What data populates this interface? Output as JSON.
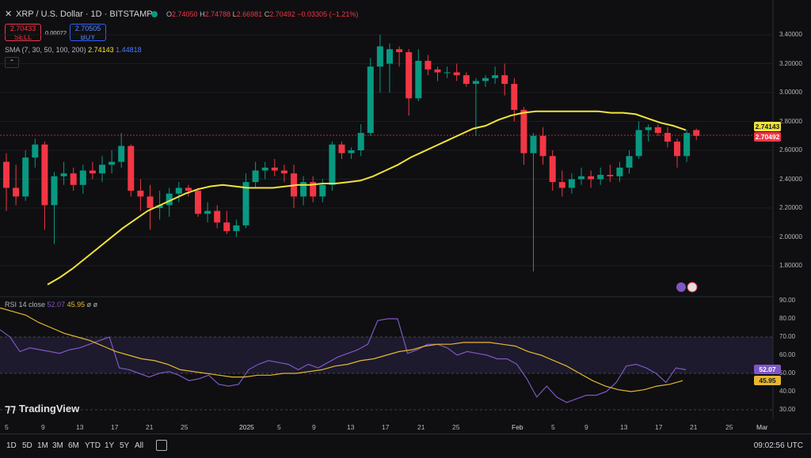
{
  "header": {
    "symbol_line": "XRP / U.S. Dollar · 1D · BITSTAMP",
    "ohlc": {
      "o_label": "O",
      "o": "2.74050",
      "h_label": "H",
      "h": "2.74788",
      "l_label": "L",
      "l": "2.66981",
      "c_label": "C",
      "c": "2.70492",
      "change": "−0.03305 (−1.21%)"
    },
    "sell_price": "2.70433",
    "sell_label": "SELL",
    "spread": "0.00072",
    "buy_price": "2.70505",
    "buy_label": "BUY"
  },
  "indicators": {
    "sma_label": "SMA (7, 30, 50, 100, 200)",
    "sma_value_1": "2.74143",
    "sma_value_2": "1.44818",
    "rsi_label": "RSI 14 close",
    "rsi_value": "52.07",
    "rsi_ma_value": "45.95",
    "rsi_extra": "ø ø"
  },
  "price_axis": [
    "3.40000",
    "3.20000",
    "3.00000",
    "2.80000",
    "2.60000",
    "2.40000",
    "2.20000",
    "2.00000",
    "1.80000"
  ],
  "price_tags": {
    "sma": "2.74143",
    "last": "2.70492"
  },
  "rsi_axis": [
    "90.00",
    "80.00",
    "70.00",
    "60.00",
    "50.00",
    "40.00",
    "30.00"
  ],
  "rsi_tags": {
    "rsi": "52.07",
    "ma": "45.95"
  },
  "x_axis": [
    "5",
    "9",
    "13",
    "17",
    "21",
    "25",
    "2025",
    "5",
    "9",
    "13",
    "17",
    "21",
    "25",
    "Feb",
    "5",
    "9",
    "13",
    "17",
    "21",
    "25",
    "Mar"
  ],
  "timeframes": [
    "1D",
    "5D",
    "1M",
    "3M",
    "6M",
    "YTD",
    "1Y",
    "5Y",
    "All"
  ],
  "clock": "09:02:56 UTC",
  "logo_text": "TradingView",
  "colors": {
    "up": "#089981",
    "down": "#f23645",
    "sma": "#f2e33a",
    "rsi": "#7e57c2",
    "rsi_ma": "#e6b82f",
    "bg": "#0f0f11"
  },
  "chart_data": [
    {
      "type": "candlestick",
      "title": "XRP / U.S. Dollar · 1D · BITSTAMP",
      "ylim": [
        1.65,
        3.45
      ],
      "candles": [
        {
          "o": 2.52,
          "h": 2.58,
          "l": 2.18,
          "c": 2.34
        },
        {
          "o": 2.34,
          "h": 2.5,
          "l": 2.22,
          "c": 2.28
        },
        {
          "o": 2.28,
          "h": 2.6,
          "l": 2.25,
          "c": 2.55
        },
        {
          "o": 2.55,
          "h": 2.68,
          "l": 2.48,
          "c": 2.64
        },
        {
          "o": 2.64,
          "h": 2.66,
          "l": 2.05,
          "c": 2.22
        },
        {
          "o": 2.22,
          "h": 2.45,
          "l": 1.95,
          "c": 2.42
        },
        {
          "o": 2.42,
          "h": 2.52,
          "l": 2.36,
          "c": 2.44
        },
        {
          "o": 2.44,
          "h": 2.48,
          "l": 2.32,
          "c": 2.36
        },
        {
          "o": 2.36,
          "h": 2.5,
          "l": 2.3,
          "c": 2.46
        },
        {
          "o": 2.46,
          "h": 2.52,
          "l": 2.4,
          "c": 2.44
        },
        {
          "o": 2.44,
          "h": 2.56,
          "l": 2.38,
          "c": 2.5
        },
        {
          "o": 2.5,
          "h": 2.6,
          "l": 2.44,
          "c": 2.52
        },
        {
          "o": 2.52,
          "h": 2.72,
          "l": 2.48,
          "c": 2.63
        },
        {
          "o": 2.63,
          "h": 2.64,
          "l": 2.28,
          "c": 2.32
        },
        {
          "o": 2.32,
          "h": 2.4,
          "l": 2.18,
          "c": 2.28
        },
        {
          "o": 2.28,
          "h": 2.36,
          "l": 2.05,
          "c": 2.2
        },
        {
          "o": 2.2,
          "h": 2.32,
          "l": 2.12,
          "c": 2.22
        },
        {
          "o": 2.22,
          "h": 2.34,
          "l": 2.14,
          "c": 2.3
        },
        {
          "o": 2.3,
          "h": 2.38,
          "l": 2.24,
          "c": 2.34
        },
        {
          "o": 2.34,
          "h": 2.36,
          "l": 2.28,
          "c": 2.32
        },
        {
          "o": 2.32,
          "h": 2.34,
          "l": 2.14,
          "c": 2.16
        },
        {
          "o": 2.16,
          "h": 2.24,
          "l": 2.1,
          "c": 2.18
        },
        {
          "o": 2.18,
          "h": 2.22,
          "l": 2.06,
          "c": 2.1
        },
        {
          "o": 2.1,
          "h": 2.18,
          "l": 2.02,
          "c": 2.04
        },
        {
          "o": 2.04,
          "h": 2.12,
          "l": 2.0,
          "c": 2.08
        },
        {
          "o": 2.08,
          "h": 2.44,
          "l": 2.06,
          "c": 2.38
        },
        {
          "o": 2.38,
          "h": 2.52,
          "l": 2.34,
          "c": 2.46
        },
        {
          "o": 2.46,
          "h": 2.52,
          "l": 2.4,
          "c": 2.48
        },
        {
          "o": 2.48,
          "h": 2.54,
          "l": 2.42,
          "c": 2.46
        },
        {
          "o": 2.46,
          "h": 2.5,
          "l": 2.38,
          "c": 2.44
        },
        {
          "o": 2.44,
          "h": 2.5,
          "l": 2.2,
          "c": 2.28
        },
        {
          "o": 2.28,
          "h": 2.42,
          "l": 2.22,
          "c": 2.38
        },
        {
          "o": 2.38,
          "h": 2.42,
          "l": 2.24,
          "c": 2.28
        },
        {
          "o": 2.28,
          "h": 2.4,
          "l": 2.24,
          "c": 2.36
        },
        {
          "o": 2.36,
          "h": 2.66,
          "l": 2.32,
          "c": 2.64
        },
        {
          "o": 2.64,
          "h": 2.66,
          "l": 2.54,
          "c": 2.58
        },
        {
          "o": 2.58,
          "h": 2.62,
          "l": 2.54,
          "c": 2.6
        },
        {
          "o": 2.6,
          "h": 2.78,
          "l": 2.56,
          "c": 2.72
        },
        {
          "o": 2.72,
          "h": 3.24,
          "l": 2.7,
          "c": 3.18
        },
        {
          "o": 3.18,
          "h": 3.4,
          "l": 3.0,
          "c": 3.32
        },
        {
          "o": 3.2,
          "h": 3.34,
          "l": 3.0,
          "c": 3.3
        },
        {
          "o": 3.3,
          "h": 3.32,
          "l": 3.18,
          "c": 3.28
        },
        {
          "o": 3.28,
          "h": 3.3,
          "l": 2.84,
          "c": 2.96
        },
        {
          "o": 2.96,
          "h": 3.3,
          "l": 2.94,
          "c": 3.22
        },
        {
          "o": 3.22,
          "h": 3.26,
          "l": 3.12,
          "c": 3.16
        },
        {
          "o": 3.16,
          "h": 3.18,
          "l": 3.08,
          "c": 3.14
        },
        {
          "o": 3.14,
          "h": 3.18,
          "l": 3.1,
          "c": 3.14
        },
        {
          "o": 3.14,
          "h": 3.2,
          "l": 3.08,
          "c": 3.12
        },
        {
          "o": 3.12,
          "h": 3.14,
          "l": 3.04,
          "c": 3.06
        },
        {
          "o": 3.06,
          "h": 3.1,
          "l": 2.7,
          "c": 3.08
        },
        {
          "o": 3.08,
          "h": 3.12,
          "l": 3.04,
          "c": 3.1
        },
        {
          "o": 3.1,
          "h": 3.18,
          "l": 3.06,
          "c": 3.12
        },
        {
          "o": 3.12,
          "h": 3.2,
          "l": 2.98,
          "c": 3.06
        },
        {
          "o": 3.06,
          "h": 3.1,
          "l": 2.8,
          "c": 2.88
        },
        {
          "o": 2.88,
          "h": 2.9,
          "l": 2.5,
          "c": 2.58
        },
        {
          "o": 2.58,
          "h": 2.72,
          "l": 1.76,
          "c": 2.7
        },
        {
          "o": 2.7,
          "h": 2.76,
          "l": 2.5,
          "c": 2.56
        },
        {
          "o": 2.56,
          "h": 2.6,
          "l": 2.32,
          "c": 2.38
        },
        {
          "o": 2.38,
          "h": 2.46,
          "l": 2.28,
          "c": 2.34
        },
        {
          "o": 2.34,
          "h": 2.44,
          "l": 2.3,
          "c": 2.4
        },
        {
          "o": 2.4,
          "h": 2.48,
          "l": 2.36,
          "c": 2.42
        },
        {
          "o": 2.42,
          "h": 2.46,
          "l": 2.34,
          "c": 2.4
        },
        {
          "o": 2.4,
          "h": 2.48,
          "l": 2.36,
          "c": 2.43
        },
        {
          "o": 2.43,
          "h": 2.5,
          "l": 2.38,
          "c": 2.42
        },
        {
          "o": 2.42,
          "h": 2.52,
          "l": 2.38,
          "c": 2.48
        },
        {
          "o": 2.48,
          "h": 2.6,
          "l": 2.44,
          "c": 2.56
        },
        {
          "o": 2.56,
          "h": 2.8,
          "l": 2.54,
          "c": 2.74
        },
        {
          "o": 2.74,
          "h": 2.78,
          "l": 2.66,
          "c": 2.76
        },
        {
          "o": 2.76,
          "h": 2.78,
          "l": 2.7,
          "c": 2.72
        },
        {
          "o": 2.72,
          "h": 2.76,
          "l": 2.62,
          "c": 2.66
        },
        {
          "o": 2.66,
          "h": 2.68,
          "l": 2.48,
          "c": 2.56
        },
        {
          "o": 2.56,
          "h": 2.74,
          "l": 2.52,
          "c": 2.72
        },
        {
          "o": 2.74,
          "h": 2.75,
          "l": 2.67,
          "c": 2.7
        }
      ],
      "sma": [
        1.67,
        1.72,
        1.78,
        1.85,
        1.92,
        1.99,
        2.06,
        2.12,
        2.18,
        2.22,
        2.26,
        2.3,
        2.33,
        2.35,
        2.36,
        2.35,
        2.34,
        2.34,
        2.34,
        2.35,
        2.36,
        2.36,
        2.37,
        2.37,
        2.38,
        2.39,
        2.42,
        2.46,
        2.5,
        2.55,
        2.59,
        2.63,
        2.67,
        2.71,
        2.75,
        2.77,
        2.81,
        2.84,
        2.86,
        2.87,
        2.87,
        2.87,
        2.87,
        2.87,
        2.87,
        2.86,
        2.86,
        2.85,
        2.82,
        2.79,
        2.77,
        2.74
      ],
      "rsi": [
        74,
        70,
        62,
        64,
        63,
        62,
        61,
        63,
        64,
        66,
        68,
        70,
        53,
        52,
        50,
        48,
        50,
        51,
        49,
        46,
        47,
        49,
        44,
        43,
        44,
        52,
        55,
        57,
        56,
        55,
        52,
        55,
        53,
        56,
        59,
        61,
        63,
        66,
        79,
        80,
        80,
        61,
        63,
        66,
        66,
        64,
        60,
        62,
        61,
        60,
        58,
        58,
        55,
        47,
        37,
        43,
        37,
        34,
        36,
        38,
        38,
        40,
        45,
        54,
        55,
        53,
        50,
        45,
        53,
        52
      ],
      "rsi_ma": [
        86,
        84,
        82,
        78,
        75,
        72,
        70,
        68,
        65,
        62,
        60,
        58,
        57,
        55,
        52,
        51,
        50,
        49,
        48,
        48,
        49,
        49,
        50,
        50,
        51,
        52,
        54,
        55,
        57,
        58,
        60,
        62,
        63,
        65,
        66,
        66,
        67,
        67,
        67,
        66,
        65,
        62,
        60,
        57,
        54,
        50,
        46,
        43,
        41,
        40,
        41,
        43,
        44,
        46
      ]
    }
  ]
}
